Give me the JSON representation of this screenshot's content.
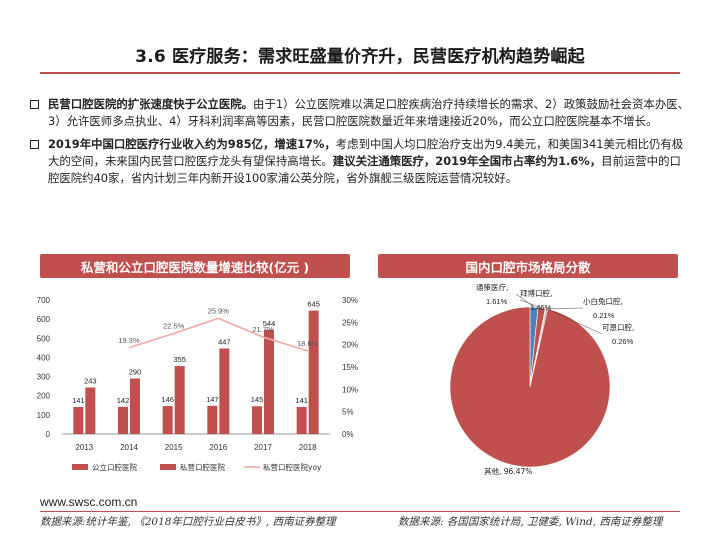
{
  "title": "3.6 医疗服务：需求旺盛量价齐升，民营医疗机构趋势崛起",
  "bullets": [
    {
      "bold1": "民营口腔医院的扩张速度快于公立医院。",
      "text1": "由于1）公立医院难以满足口腔疾病治疗持续增长的需求、2）政策鼓励社会资本办医、3）允许医师多点执业、4）牙科利润率高等因素，民营口腔医院数量近年来增速接近20%，而公立口腔医院基本不增长。",
      "bold2": "",
      "text2": ""
    },
    {
      "bold1": "2019年中国口腔医疗行业收入约为985亿，增速17%，",
      "text1": "考虑到中国人均口腔治疗支出为9.4美元，和美国341美元相比仍有极大的空间，未来国内民营口腔医疗龙头有望保持高增长。",
      "bold2": "建议关注通策医疗，2019年全国市占率约为1.6%，",
      "text2": "目前运营中的口腔医院约40家，省内计划三年内新开设100家浦公英分院，省外旗舰三级医院运营情况较好。"
    }
  ],
  "left_panel_title": "私营和公立口腔医院数量增速比较(亿元 )",
  "right_panel_title": "国内口腔市场格局分散",
  "colors": {
    "accent": "#c0504d",
    "bar_dark": "#c0504d",
    "line_light": "#f0a8a8"
  },
  "chart_data": [
    {
      "type": "bar",
      "categories": [
        "2013",
        "2014",
        "2015",
        "2016",
        "2017",
        "2018"
      ],
      "series": [
        {
          "name": "公立口腔医院",
          "values": [
            141,
            142,
            146,
            147,
            145,
            141
          ],
          "axis": "left"
        },
        {
          "name": "私营口腔医院",
          "values": [
            243,
            290,
            355,
            447,
            544,
            645
          ],
          "axis": "left"
        },
        {
          "name": "私营口腔医院yoy",
          "type": "line",
          "values": [
            null,
            19.3,
            22.5,
            25.9,
            21.7,
            18.6
          ],
          "labels": [
            "",
            "19.3%",
            "22.5%",
            "25.9%",
            "21.7%",
            "18.6%"
          ],
          "axis": "right"
        }
      ],
      "y_left": {
        "ylim": [
          0,
          700
        ],
        "ticks": [
          "0",
          "100",
          "200",
          "300",
          "400",
          "500",
          "600",
          "700"
        ]
      },
      "y_right": {
        "ylim": [
          0,
          30
        ],
        "ticks": [
          "0%",
          "5%",
          "10%",
          "15%",
          "20%",
          "25%",
          "30%"
        ]
      },
      "legend_placement": "bottom",
      "grid": false
    },
    {
      "type": "pie",
      "slices": [
        {
          "name": "通策医疗",
          "value": 1.61,
          "label_line1": "通策医疗,",
          "label_line2": "1.61%"
        },
        {
          "name": "拜博口腔",
          "value": 1.46,
          "label_line1": "拜博口腔,",
          "label_line2": "1.46%"
        },
        {
          "name": "小白兔口腔",
          "value": 0.21,
          "label_line1": "小白兔口腔,",
          "label_line2": "0.21%"
        },
        {
          "name": "可恩口腔",
          "value": 0.26,
          "label_line1": "可恩口腔,",
          "label_line2": "0.26%"
        },
        {
          "name": "其他",
          "value": 96.47,
          "label_line1": "其他, 96.47%",
          "label_line2": ""
        }
      ],
      "colors": [
        "#4f81bd",
        "#c0504d",
        "#9bbb59",
        "#8064a2",
        "#c0504d"
      ]
    }
  ],
  "footer": {
    "url": "www.swsc.com.cn",
    "source_left": "数据来源:统计年鉴, 《2018年口腔行业白皮书》, 西南证券整理",
    "source_right": "数据来源: 各国国家统计局, 卫健委, Wind, 西南证券整理"
  }
}
